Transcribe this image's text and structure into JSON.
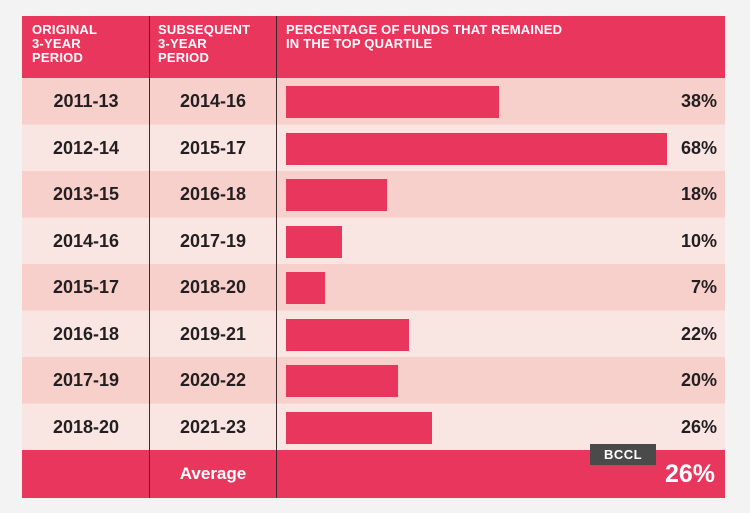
{
  "header": {
    "col1": [
      "ORIGINAL",
      "3-YEAR",
      "PERIOD"
    ],
    "col2": [
      "SUBSEQUENT",
      "3-YEAR",
      "PERIOD"
    ],
    "col3": [
      "PERCENTAGE OF FUNDS THAT REMAINED",
      "IN THE TOP QUARTILE"
    ]
  },
  "chart_data": {
    "type": "bar",
    "orientation": "horizontal",
    "title": "",
    "categories": [
      "2011-13",
      "2012-14",
      "2013-15",
      "2014-16",
      "2015-17",
      "2016-18",
      "2017-19",
      "2018-20"
    ],
    "subsequent_periods": [
      "2014-16",
      "2015-17",
      "2016-18",
      "2017-19",
      "2018-20",
      "2019-21",
      "2020-22",
      "2021-23"
    ],
    "values": [
      38,
      68,
      18,
      10,
      7,
      22,
      20,
      26
    ],
    "value_labels": [
      "38%",
      "68%",
      "18%",
      "10%",
      "7%",
      "22%",
      "20%",
      "26%"
    ],
    "xlim": [
      0,
      68
    ]
  },
  "footer": {
    "label": "Average",
    "value": "26%"
  },
  "watermark": "BCCL",
  "colors": {
    "accent": "#e8365c",
    "row_alt": "#f9e6e3",
    "row_base": "#f7d0cc"
  }
}
